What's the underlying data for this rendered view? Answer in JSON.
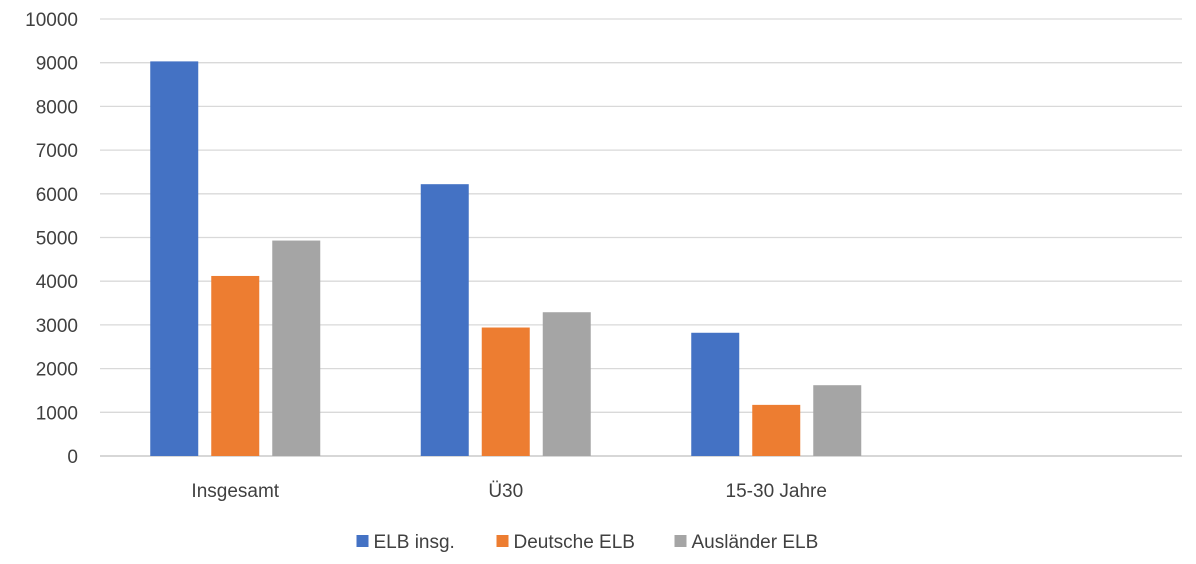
{
  "chart_data": {
    "type": "bar",
    "categories": [
      "Insgesamt",
      "Ü30",
      "15-30 Jahre",
      ""
    ],
    "series": [
      {
        "name": "ELB insg.",
        "color": "#4472C4",
        "values": [
          9030,
          6220,
          2820,
          null
        ]
      },
      {
        "name": "Deutsche ELB",
        "color": "#ED7D31",
        "values": [
          4120,
          2940,
          1170,
          null
        ]
      },
      {
        "name": "Ausländer ELB",
        "color": "#A5A5A5",
        "values": [
          4930,
          3290,
          1620,
          null
        ]
      }
    ],
    "yticks": [
      "0",
      "1000",
      "2000",
      "3000",
      "4000",
      "5000",
      "6000",
      "7000",
      "8000",
      "9000",
      "10000"
    ],
    "ylim": [
      0,
      10000
    ],
    "grid": true,
    "legend_position": "bottom",
    "title": "",
    "xlabel": "",
    "ylabel": ""
  }
}
